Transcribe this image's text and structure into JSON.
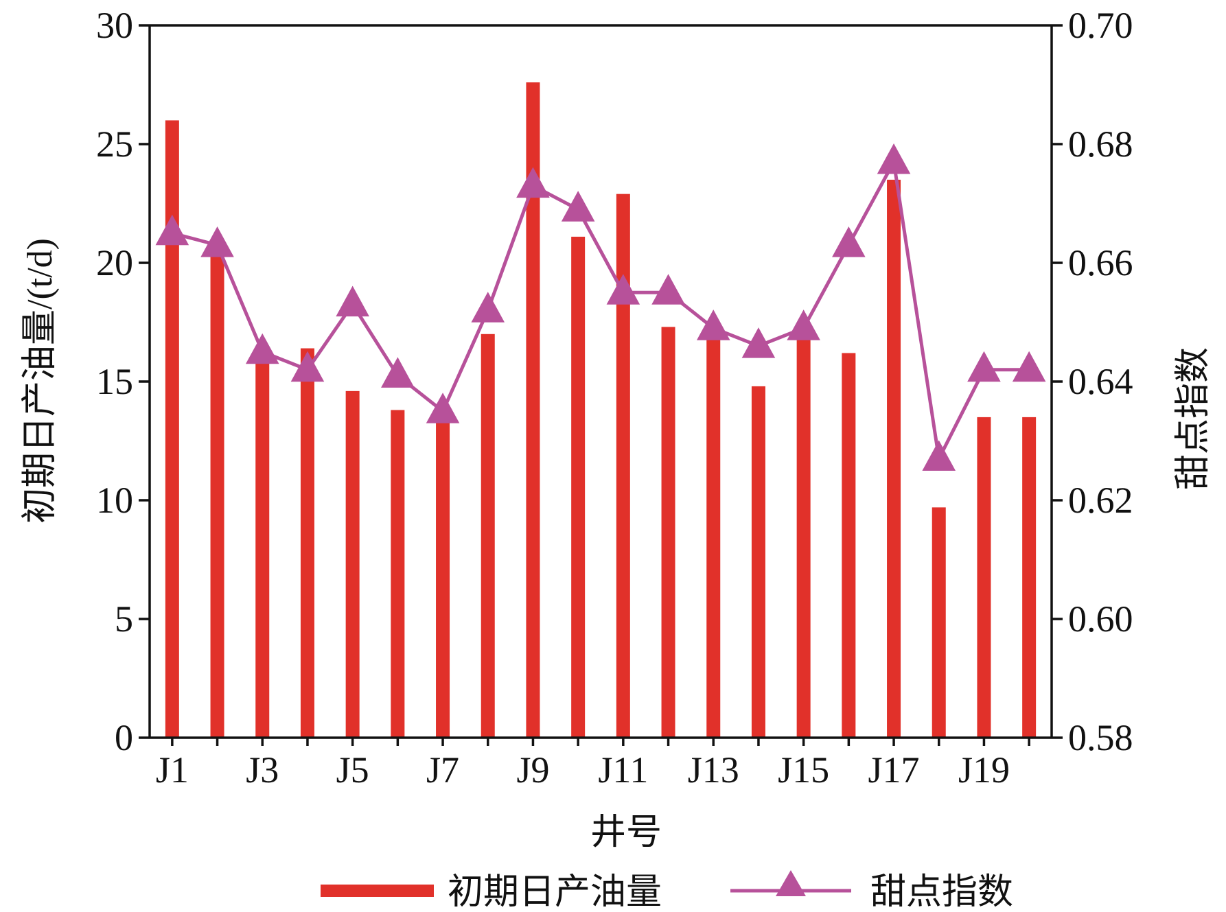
{
  "chart_data": {
    "type": "bar",
    "categories": [
      "J1",
      "J2",
      "J3",
      "J4",
      "J5",
      "J6",
      "J7",
      "J8",
      "J9",
      "J10",
      "J11",
      "J12",
      "J13",
      "J14",
      "J15",
      "J16",
      "J17",
      "J18",
      "J19",
      "J20"
    ],
    "x_tick_labels": [
      "J1",
      "J3",
      "J5",
      "J7",
      "J9",
      "J11",
      "J13",
      "J15",
      "J17",
      "J19"
    ],
    "xlabel": "井号",
    "ylabel_left": "初期日产油量/(t/d)",
    "ylabel_right": "甜点指数",
    "ylim_left": [
      0,
      30
    ],
    "yticks_left": [
      "0",
      "5",
      "10",
      "15",
      "20",
      "25",
      "30"
    ],
    "ylim_right": [
      0.58,
      0.7
    ],
    "yticks_right": [
      "0.58",
      "0.60",
      "0.62",
      "0.64",
      "0.66",
      "0.68",
      "0.70"
    ],
    "grid": false,
    "legend_position": "bottom",
    "series": [
      {
        "name": "初期日产油量",
        "type": "bar",
        "axis": "left",
        "color": "#e1312a",
        "values": [
          26.0,
          20.3,
          15.8,
          16.4,
          14.6,
          13.8,
          13.3,
          17.0,
          27.6,
          21.1,
          22.9,
          17.3,
          17.1,
          14.8,
          16.8,
          16.2,
          23.5,
          9.7,
          13.5,
          13.5
        ]
      },
      {
        "name": "甜点指数",
        "type": "line",
        "axis": "right",
        "marker": "triangle",
        "color": "#b7519a",
        "values": [
          0.665,
          0.663,
          0.645,
          0.642,
          0.653,
          0.641,
          0.635,
          0.652,
          0.673,
          0.669,
          0.655,
          0.655,
          0.649,
          0.646,
          0.649,
          0.663,
          0.677,
          0.627,
          0.642,
          0.642
        ]
      }
    ]
  }
}
